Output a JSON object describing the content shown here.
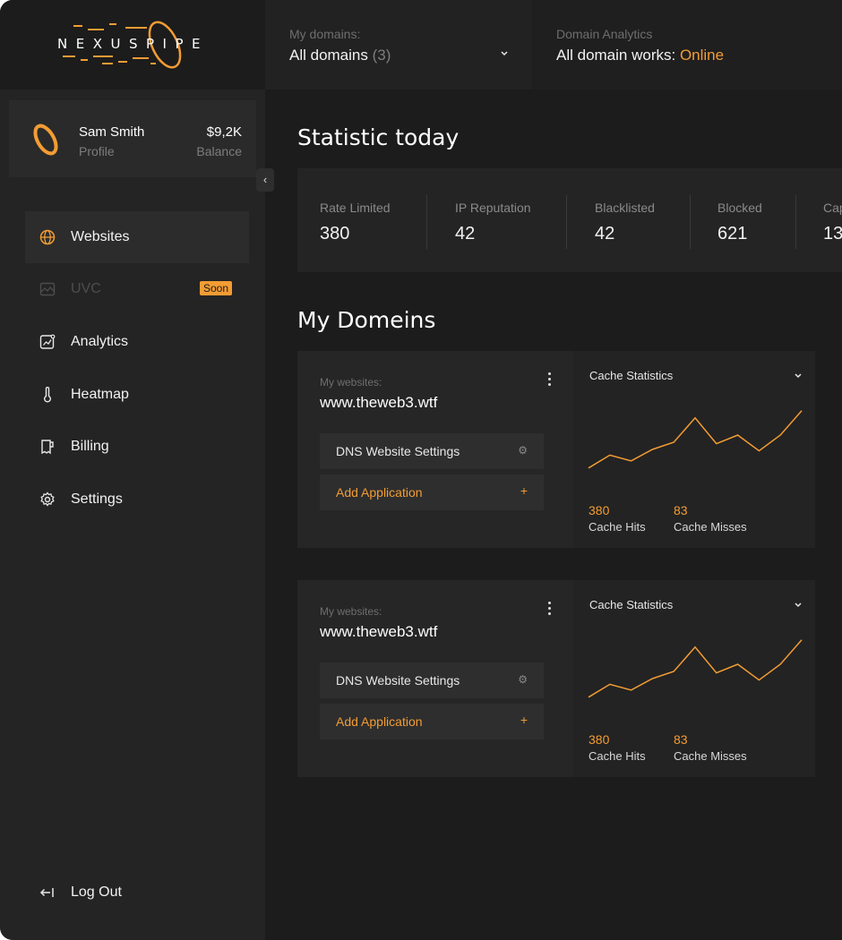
{
  "brand": {
    "name": "NEXUSPIPE"
  },
  "colors": {
    "accent": "#f39c33",
    "background": "#1c1c1c",
    "panel": "#242424"
  },
  "profile": {
    "name": "Sam Smith",
    "subtitle": "Profile",
    "balance": "$9,2K",
    "balance_label": "Balance"
  },
  "sidebar": {
    "items": [
      {
        "label": "Websites",
        "icon": "globe-icon",
        "active": true
      },
      {
        "label": "UVC",
        "icon": "image-icon",
        "disabled": true,
        "badge": "Soon"
      },
      {
        "label": "Analytics",
        "icon": "analytics-icon"
      },
      {
        "label": "Heatmap",
        "icon": "thermometer-icon"
      },
      {
        "label": "Billing",
        "icon": "billing-icon"
      },
      {
        "label": "Settings",
        "icon": "gear-icon"
      }
    ],
    "logout_label": "Log Out"
  },
  "header": {
    "domains_label": "My domains:",
    "domains_value": "All domains",
    "domains_count": "(3)",
    "analytics_label": "Domain Analytics",
    "analytics_value": "All domain works:",
    "analytics_status": "Online"
  },
  "stats": {
    "title": "Statistic today",
    "items": [
      {
        "label": "Rate Limited",
        "value": "380"
      },
      {
        "label": "IP Reputation",
        "value": "42"
      },
      {
        "label": "Blacklisted",
        "value": "42"
      },
      {
        "label": "Blocked",
        "value": "621"
      },
      {
        "label": "Cap",
        "value": "13"
      }
    ]
  },
  "domains": {
    "title": "My Domeins",
    "cards": [
      {
        "sub_label": "My websites:",
        "url": "www.theweb3.wtf",
        "dns_label": "DNS Website Settings",
        "add_label": "Add Application",
        "add_symbol": "+",
        "chart_title": "Cache Statistics",
        "hits_value": "380",
        "hits_label": "Cache Hits",
        "misses_value": "83",
        "misses_label": "Cache Misses"
      },
      {
        "sub_label": "My websites:",
        "url": "www.theweb3.wtf",
        "dns_label": "DNS Website Settings",
        "add_label": "Add Application",
        "add_symbol": "+",
        "chart_title": "Cache Statistics",
        "hits_value": "380",
        "hits_label": "Cache Hits",
        "misses_value": "83",
        "misses_label": "Cache Misses"
      }
    ]
  },
  "chart_data": {
    "type": "line",
    "title": "Cache Statistics",
    "series": [
      {
        "values": [
          2,
          11,
          7,
          15,
          20,
          37,
          19,
          25,
          14,
          25,
          42
        ]
      }
    ],
    "ylim": [
      0,
      50
    ],
    "grid": false
  }
}
